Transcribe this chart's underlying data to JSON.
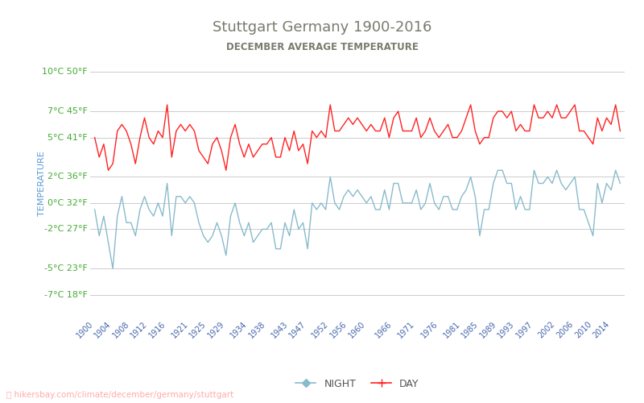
{
  "title": "Stuttgart Germany 1900-2016",
  "subtitle": "DECEMBER AVERAGE TEMPERATURE",
  "ylabel": "TEMPERATURE",
  "ylabel_color": "#5b9bd5",
  "title_color": "#7a7a6e",
  "subtitle_color": "#7a7a6e",
  "background_color": "#ffffff",
  "grid_color": "#cccccc",
  "url_text": "hikersbay.com/climate/december/germany/stuttgart",
  "url_color": "#ffaaaa",
  "legend_night_color": "#88bbcc",
  "legend_day_color": "#ff2222",
  "tick_label_color": "#4466aa",
  "ytick_label_color": "#44aa33",
  "yticks_celsius": [
    -7,
    -5,
    -2,
    0,
    2,
    5,
    7,
    10
  ],
  "yticks_fahrenheit": [
    18,
    23,
    27,
    32,
    36,
    41,
    45,
    50
  ],
  "xtick_labels": [
    1900,
    1904,
    1908,
    1912,
    1916,
    1921,
    1925,
    1929,
    1934,
    1938,
    1943,
    1947,
    1952,
    1956,
    1960,
    1966,
    1971,
    1976,
    1981,
    1985,
    1989,
    1993,
    1997,
    2002,
    2006,
    2010,
    2014
  ],
  "years": [
    1900,
    1901,
    1902,
    1903,
    1904,
    1905,
    1906,
    1907,
    1908,
    1909,
    1910,
    1911,
    1912,
    1913,
    1914,
    1915,
    1916,
    1917,
    1918,
    1919,
    1920,
    1921,
    1922,
    1923,
    1924,
    1925,
    1926,
    1927,
    1928,
    1929,
    1930,
    1931,
    1932,
    1933,
    1934,
    1935,
    1936,
    1937,
    1938,
    1939,
    1940,
    1941,
    1942,
    1943,
    1944,
    1945,
    1946,
    1947,
    1948,
    1949,
    1950,
    1951,
    1952,
    1953,
    1954,
    1955,
    1956,
    1957,
    1958,
    1959,
    1960,
    1961,
    1962,
    1963,
    1964,
    1965,
    1966,
    1967,
    1968,
    1969,
    1970,
    1971,
    1972,
    1973,
    1974,
    1975,
    1976,
    1977,
    1978,
    1979,
    1980,
    1981,
    1982,
    1983,
    1984,
    1985,
    1986,
    1987,
    1988,
    1989,
    1990,
    1991,
    1992,
    1993,
    1994,
    1995,
    1996,
    1997,
    1998,
    1999,
    2000,
    2001,
    2002,
    2003,
    2004,
    2005,
    2006,
    2007,
    2008,
    2009,
    2010,
    2011,
    2012,
    2013,
    2014,
    2015,
    2016
  ],
  "day_temps": [
    5.0,
    3.5,
    4.5,
    2.5,
    3.0,
    5.5,
    6.0,
    5.5,
    4.5,
    3.0,
    5.0,
    6.5,
    5.0,
    4.5,
    5.5,
    5.0,
    7.5,
    3.5,
    5.5,
    6.0,
    5.5,
    6.0,
    5.5,
    4.0,
    3.5,
    3.0,
    4.5,
    5.0,
    4.0,
    2.5,
    5.0,
    6.0,
    4.5,
    3.5,
    4.5,
    3.5,
    4.0,
    4.5,
    4.5,
    5.0,
    3.5,
    3.5,
    5.0,
    4.0,
    5.5,
    4.0,
    4.5,
    3.0,
    5.5,
    5.0,
    5.5,
    5.0,
    7.5,
    5.5,
    5.5,
    6.0,
    6.5,
    6.0,
    6.5,
    6.0,
    5.5,
    6.0,
    5.5,
    5.5,
    6.5,
    5.0,
    6.5,
    7.0,
    5.5,
    5.5,
    5.5,
    6.5,
    5.0,
    5.5,
    6.5,
    5.5,
    5.0,
    5.5,
    6.0,
    5.0,
    5.0,
    5.5,
    6.5,
    7.5,
    5.5,
    4.5,
    5.0,
    5.0,
    6.5,
    7.0,
    7.0,
    6.5,
    7.0,
    5.5,
    6.0,
    5.5,
    5.5,
    7.5,
    6.5,
    6.5,
    7.0,
    6.5,
    7.5,
    6.5,
    6.5,
    7.0,
    7.5,
    5.5,
    5.5,
    5.0,
    4.5,
    6.5,
    5.5,
    6.5,
    6.0,
    7.5,
    5.5
  ],
  "night_temps": [
    -0.5,
    -2.5,
    -1.0,
    -3.0,
    -5.0,
    -1.0,
    0.5,
    -1.5,
    -1.5,
    -2.5,
    -0.5,
    0.5,
    -0.5,
    -1.0,
    0.0,
    -1.0,
    1.5,
    -2.5,
    0.5,
    0.5,
    0.0,
    0.5,
    0.0,
    -1.5,
    -2.5,
    -3.0,
    -2.5,
    -1.5,
    -2.5,
    -4.0,
    -1.0,
    0.0,
    -1.5,
    -2.5,
    -1.5,
    -3.0,
    -2.5,
    -2.0,
    -2.0,
    -1.5,
    -3.5,
    -3.5,
    -1.5,
    -2.5,
    -0.5,
    -2.0,
    -1.5,
    -3.5,
    0.0,
    -0.5,
    0.0,
    -0.5,
    2.0,
    0.0,
    -0.5,
    0.5,
    1.0,
    0.5,
    1.0,
    0.5,
    0.0,
    0.5,
    -0.5,
    -0.5,
    1.0,
    -0.5,
    1.5,
    1.5,
    0.0,
    0.0,
    0.0,
    1.0,
    -0.5,
    0.0,
    1.5,
    0.0,
    -0.5,
    0.5,
    0.5,
    -0.5,
    -0.5,
    0.5,
    1.0,
    2.0,
    0.5,
    -2.5,
    -0.5,
    -0.5,
    1.5,
    2.5,
    2.5,
    1.5,
    1.5,
    -0.5,
    0.5,
    -0.5,
    -0.5,
    2.5,
    1.5,
    1.5,
    2.0,
    1.5,
    2.5,
    1.5,
    1.0,
    1.5,
    2.0,
    -0.5,
    -0.5,
    -1.5,
    -2.5,
    1.5,
    0.0,
    1.5,
    1.0,
    2.5,
    1.5
  ],
  "ymin": -8.5,
  "ymax": 11.5,
  "xmin": 1899,
  "xmax": 2017
}
